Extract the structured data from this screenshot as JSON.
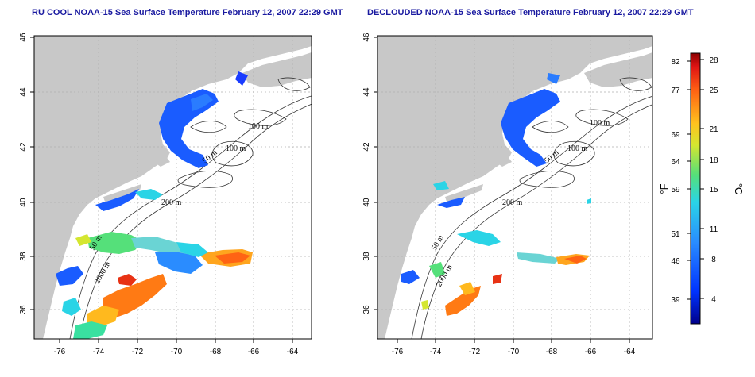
{
  "panels": [
    {
      "title": "RU COOL NOAA-15 Sea Surface Temperature February 12, 2007 22:29 GMT"
    },
    {
      "title": "DECLOUDED NOAA-15 Sea Surface Temperature February 12, 2007 22:29 GMT"
    }
  ],
  "axes": {
    "x_ticks": [
      "-76",
      "-74",
      "-72",
      "-70",
      "-68",
      "-66",
      "-64"
    ],
    "y_ticks": [
      "36",
      "38",
      "40",
      "42",
      "44",
      "46"
    ]
  },
  "depth_labels": [
    "100 m",
    "100 m",
    "50 m",
    "200 m",
    "50 m",
    "2000 m"
  ],
  "colorbar": {
    "fahrenheit_label": "°F",
    "celsius_label": "°C",
    "fahrenheit_ticks": [
      "82",
      "77",
      "69",
      "64",
      "59",
      "51",
      "46",
      "39"
    ],
    "celsius_ticks": [
      "28",
      "25",
      "21",
      "18",
      "15",
      "11",
      "8",
      "4"
    ]
  },
  "colors": {
    "land": "#c8c8c8",
    "title": "#1a1aa0",
    "grid": "#b0b0b0"
  }
}
